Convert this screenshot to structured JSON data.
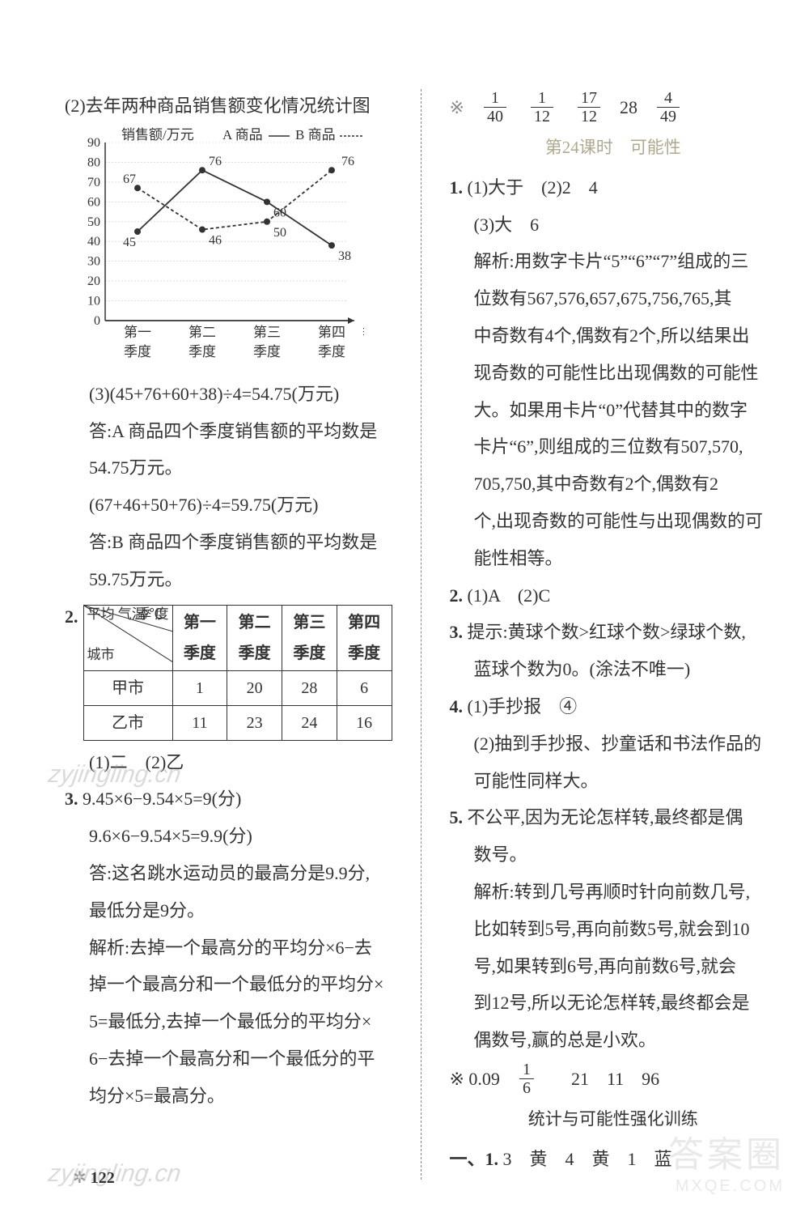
{
  "left": {
    "title_2": "(2)去年两种商品销售额变化情况统计图",
    "chart": {
      "type": "line",
      "y_label": "销售额/万元",
      "legend": [
        "A 商品",
        "B 商品"
      ],
      "legend_styles": [
        "solid",
        "dashed"
      ],
      "x_labels": [
        "第一季度",
        "第二季度",
        "第三季度",
        "第四季度"
      ],
      "x_short": [
        "第一",
        "第二",
        "第三",
        "第四",
        "季度"
      ],
      "x_sub": [
        "季度",
        "季度",
        "季度",
        "季度",
        ""
      ],
      "y_ticks": [
        0,
        10,
        20,
        30,
        40,
        50,
        60,
        70,
        80,
        90
      ],
      "ylim": [
        0,
        90
      ],
      "series": {
        "A": {
          "values": [
            45,
            76,
            60,
            38
          ],
          "labels": [
            "45",
            "76",
            "60",
            "38"
          ],
          "dash": "0"
        },
        "B": {
          "values": [
            67,
            46,
            50,
            76
          ],
          "labels": [
            "67",
            "46",
            "50",
            "76"
          ],
          "dash": "4 3"
        }
      },
      "colors": {
        "line": "#333333",
        "grid": "#bbbbbb",
        "text": "#333333",
        "bg": "#ffffff"
      },
      "font_size": 16
    },
    "l3a": "(3)(45+76+60+38)÷4=54.75(万元)",
    "l3b": "答:A 商品四个季度销售额的平均数是",
    "l3c": "54.75万元。",
    "l3d": "(67+46+50+76)÷4=59.75(万元)",
    "l3e": "答:B 商品四个季度销售额的平均数是",
    "l3f": "59.75万元。",
    "q2": "2.",
    "table": {
      "diag_labels": {
        "tl": "平均\n气温",
        "tr": "季\n度",
        "mid": "/℃",
        "bl": "城市"
      },
      "columns": [
        "第一季度",
        "第二季度",
        "第三季度",
        "第四季度"
      ],
      "rows": [
        {
          "name": "甲市",
          "vals": [
            "1",
            "20",
            "28",
            "6"
          ]
        },
        {
          "name": "乙市",
          "vals": [
            "11",
            "23",
            "24",
            "16"
          ]
        }
      ]
    },
    "q2a": "(1)二　(2)乙",
    "q3": "3.",
    "q3a": "9.45×6−9.54×5=9(分)",
    "q3b": "9.6×6−9.54×5=9.9(分)",
    "q3c": "答:这名跳水运动员的最高分是9.9分,",
    "q3d": "最低分是9分。",
    "q3e": "解析:去掉一个最高分的平均分×6−去",
    "q3f": "掉一个最高分和一个最低分的平均分×",
    "q3g": "5=最低分,去掉一个最低分的平均分×",
    "q3h": "6−去掉一个最高分和一个最低分的平",
    "q3i": "均分×5=最高分。"
  },
  "right": {
    "fractions": [
      {
        "n": "1",
        "d": "40"
      },
      {
        "n": "1",
        "d": "12"
      },
      {
        "n": "17",
        "d": "12"
      },
      {
        "plain": "28"
      },
      {
        "n": "4",
        "d": "49"
      }
    ],
    "sec24": "第24课时　可能性",
    "r1": "1.",
    "r1a": "(1)大于　(2)2　4",
    "r1b": "(3)大　6",
    "r1c": "解析:用数字卡片“5”“6”“7”组成的三",
    "r1d": "位数有567,576,657,675,756,765,其",
    "r1e": "中奇数有4个,偶数有2个,所以结果出",
    "r1f": "现奇数的可能性比出现偶数的可能性",
    "r1g": "大。如果用卡片“0”代替其中的数字",
    "r1h": "卡片“6”,则组成的三位数有507,570,",
    "r1i": "705,750,其中奇数有2个,偶数有2",
    "r1j": "个,出现奇数的可能性与出现偶数的可",
    "r1k": "能性相等。",
    "r2": "2.",
    "r2a": "(1)A　(2)C",
    "r3": "3.",
    "r3a": "提示:黄球个数>红球个数>绿球个数,",
    "r3b": "蓝球个数为0。(涂法不唯一)",
    "r4": "4.",
    "r4a": "(1)手抄报　④",
    "r4b": "(2)抽到手抄报、抄童话和书法作品的",
    "r4c": "可能性同样大。",
    "r5": "5.",
    "r5a": "不公平,因为无论怎样转,最终都是偶",
    "r5b": "数号。",
    "r5c": "解析:转到几号再顺时针向前数几号,",
    "r5d": "比如转到5号,再向前数5号,就会到10",
    "r5e": "号,如果转到6号,再向前数6号,就会",
    "r5f": "到12号,所以无论怎样转,最终都会是",
    "r5g": "偶数号,赢的总是小欢。",
    "bonus_prefix": "※ 0.09",
    "bonus_frac": {
      "n": "1",
      "d": "6"
    },
    "bonus_rest": "　21　11　96",
    "sec_stat": "统计与可能性强化训练",
    "rA": "一、1.",
    "rAa": "3　黄　4　黄　1　蓝"
  },
  "watermarks": {
    "wm1": "zyjingling.cn",
    "wm2": "zyjingling.cn",
    "brand_big": "答案圈",
    "brand_small": "MXQE.COM"
  },
  "page_number": "122"
}
